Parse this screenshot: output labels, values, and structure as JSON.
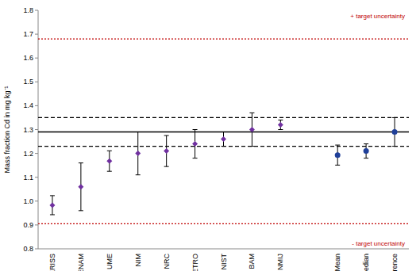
{
  "chart_data": {
    "type": "scatter",
    "y_label": "Mass fraction Cd in mg kg⁻¹",
    "categories": [
      "KRISS",
      "CENAM",
      "UME",
      "NIM",
      "NRC",
      "INMETRO",
      "NIST",
      "BAM",
      "NMIJ",
      null,
      "Mean",
      "Median",
      "Reference"
    ],
    "values": [
      0.983,
      1.06,
      1.168,
      1.2,
      1.21,
      1.24,
      1.26,
      1.3,
      1.32,
      null,
      1.193,
      1.21,
      1.29
    ],
    "errors": [
      0.04,
      0.1,
      0.043,
      0.09,
      0.065,
      0.06,
      0.03,
      0.07,
      0.02,
      null,
      0.042,
      0.03,
      0.06
    ],
    "colors": [
      "#7030a0",
      "#7030a0",
      "#7030a0",
      "#7030a0",
      "#7030a0",
      "#7030a0",
      "#7030a0",
      "#7030a0",
      "#7030a0",
      null,
      "#1f3f99",
      "#1f3f99",
      "#1f3f99"
    ],
    "marker": "diamond",
    "ylim": [
      0.8,
      1.8
    ],
    "yticks": [
      0.8,
      0.9,
      {
        "value": 1,
        "label": "1.0"
      },
      1.1,
      1.2,
      1.3,
      1.4,
      1.5,
      1.6,
      1.7,
      1.8
    ],
    "grid": false,
    "lines": [
      {
        "value": 1.29,
        "line_style": "solid",
        "color": "#000000"
      },
      {
        "value": 1.23,
        "line_style": "dashed",
        "color": "#000000"
      },
      {
        "value": 1.35,
        "line_style": "dashed",
        "color": "#000000"
      },
      {
        "value": 1.68,
        "line_style": "dotted",
        "color": "#c00000",
        "label": "+ target uncertainty"
      },
      {
        "value": 0.905,
        "line_style": "dotted",
        "color": "#c00000",
        "label": "- target uncertainty"
      }
    ]
  }
}
